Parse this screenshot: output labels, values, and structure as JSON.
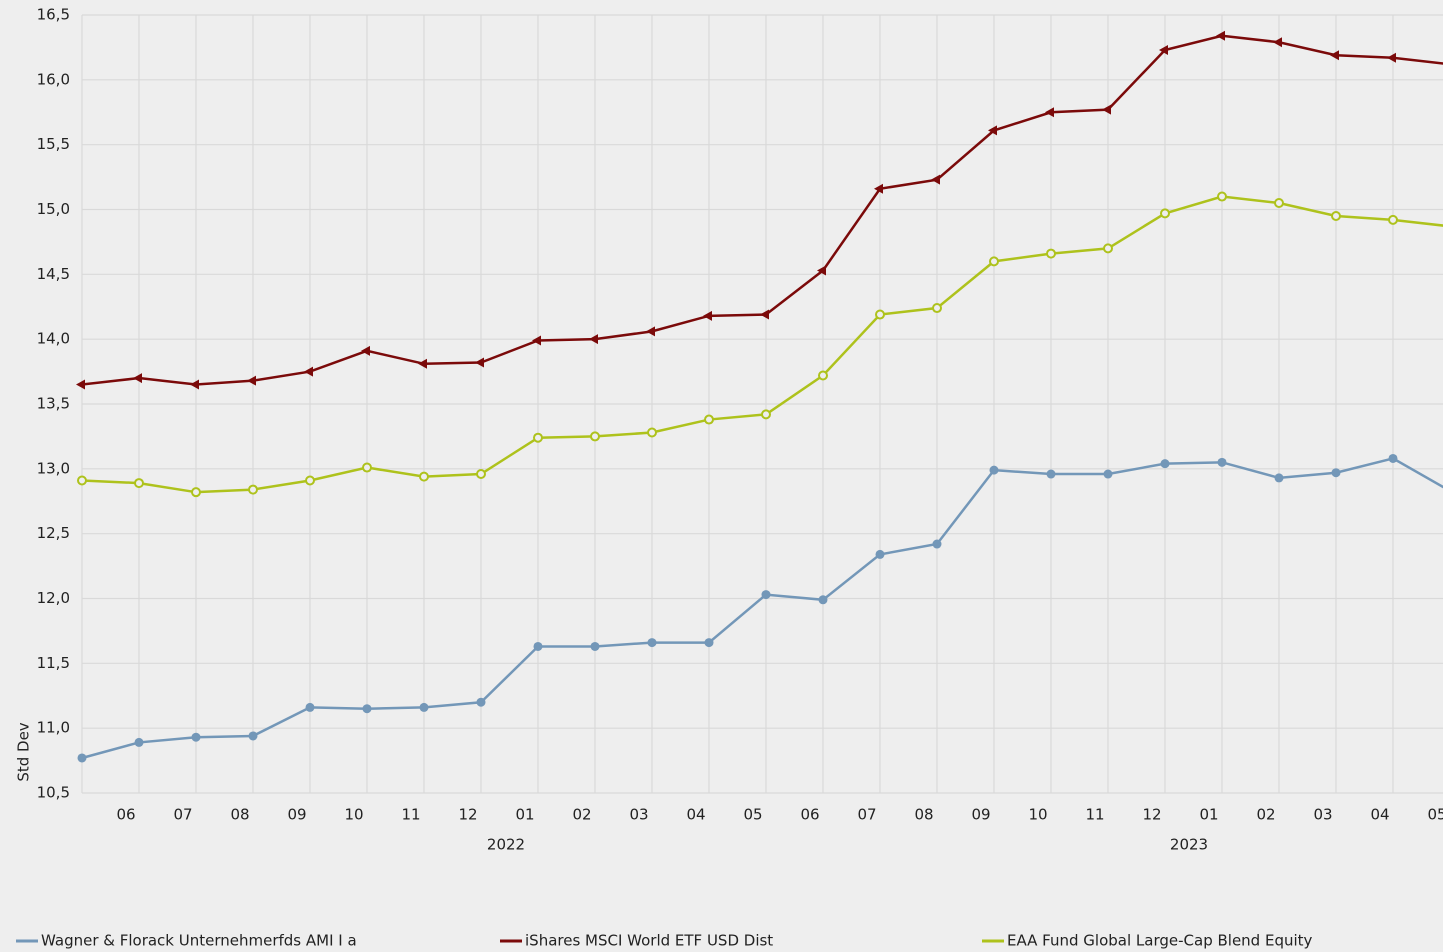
{
  "chart_data": {
    "type": "line",
    "y_label": "Std Dev",
    "categories": [
      null,
      "06",
      "07",
      "08",
      "09",
      "10",
      "11",
      "12",
      "01",
      "02",
      "03",
      "04",
      "05",
      "06",
      "07",
      "08",
      "09",
      "10",
      "11",
      "12",
      "01",
      "02",
      "03",
      "04",
      "05"
    ],
    "year_labels": [
      "2022",
      "2023"
    ],
    "ylim": [
      10.5,
      16.5
    ],
    "yticks": [
      {
        "value": 10.5,
        "label": "10,5"
      },
      {
        "value": 11,
        "label": "11,0"
      },
      {
        "value": 11.5,
        "label": "11,5"
      },
      {
        "value": 12,
        "label": "12,0"
      },
      {
        "value": 12.5,
        "label": "12,5"
      },
      {
        "value": 13,
        "label": "13,0"
      },
      {
        "value": 13.5,
        "label": "13,5"
      },
      {
        "value": 14,
        "label": "14,0"
      },
      {
        "value": 14.5,
        "label": "14,5"
      },
      {
        "value": 15,
        "label": "15,0"
      },
      {
        "value": 15.5,
        "label": "15,5"
      },
      {
        "value": 16,
        "label": "16,0"
      },
      {
        "value": 16.5,
        "label": "16,5"
      }
    ],
    "grid": true,
    "legend": "bottom",
    "series": [
      {
        "name": "Wagner & Florack Unternehmerfds AMI I a",
        "color": "#7397b8",
        "marker": "circle",
        "values": [
          10.77,
          10.89,
          10.93,
          10.94,
          11.16,
          11.15,
          11.16,
          11.2,
          11.63,
          11.63,
          11.66,
          11.66,
          12.03,
          11.99,
          12.34,
          12.42,
          12.99,
          12.96,
          12.96,
          13.04,
          13.05,
          12.93,
          12.97,
          13.08,
          12.83
        ]
      },
      {
        "name": "iShares MSCI World ETF USD Dist",
        "color": "#7b0a0a",
        "marker": "triangle-left",
        "values": [
          13.65,
          13.7,
          13.65,
          13.68,
          13.75,
          13.91,
          13.81,
          13.82,
          13.99,
          14.0,
          14.06,
          14.18,
          14.19,
          14.53,
          15.16,
          15.23,
          15.61,
          15.75,
          15.77,
          16.23,
          16.34,
          16.29,
          16.19,
          16.17,
          16.12
        ]
      },
      {
        "name": "EAA Fund Global Large-Cap Blend Equity",
        "color": "#aec21c",
        "marker": "open-circle",
        "values": [
          12.91,
          12.89,
          12.82,
          12.84,
          12.91,
          13.01,
          12.94,
          12.96,
          13.24,
          13.25,
          13.28,
          13.38,
          13.42,
          13.72,
          14.19,
          14.24,
          14.6,
          14.66,
          14.7,
          14.97,
          15.1,
          15.05,
          14.95,
          14.92,
          14.87
        ]
      }
    ]
  }
}
